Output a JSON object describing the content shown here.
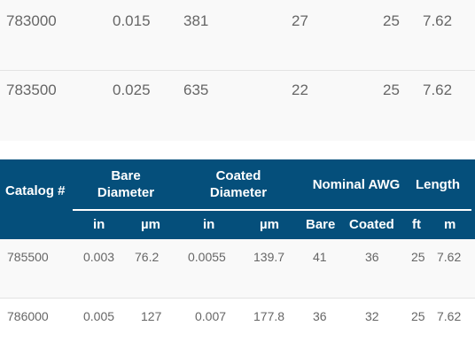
{
  "top_table": {
    "rows": [
      [
        "783000",
        "0.015",
        "381",
        "27",
        "25",
        "7.62"
      ],
      [
        "783500",
        "0.025",
        "635",
        "22",
        "25",
        "7.62"
      ]
    ]
  },
  "table": {
    "headers": {
      "catalog": "Catalog #",
      "bare_diameter": "Bare Diameter",
      "coated_diameter": "Coated Diameter",
      "nominal_awg": "Nominal AWG",
      "length": "Length"
    },
    "subheaders": {
      "bare_in": "in",
      "bare_um": "µm",
      "coated_in": "in",
      "coated_um": "µm",
      "awg_bare": "Bare",
      "awg_coated": "Coated",
      "len_ft": "ft",
      "len_m": "m"
    },
    "rows": [
      [
        "785500",
        "0.003",
        "76.2",
        "0.0055",
        "139.7",
        "41",
        "36",
        "25",
        "7.62"
      ],
      [
        "786000",
        "0.005",
        "127",
        "0.007",
        "177.8",
        "36",
        "32",
        "25",
        "7.62"
      ]
    ]
  }
}
